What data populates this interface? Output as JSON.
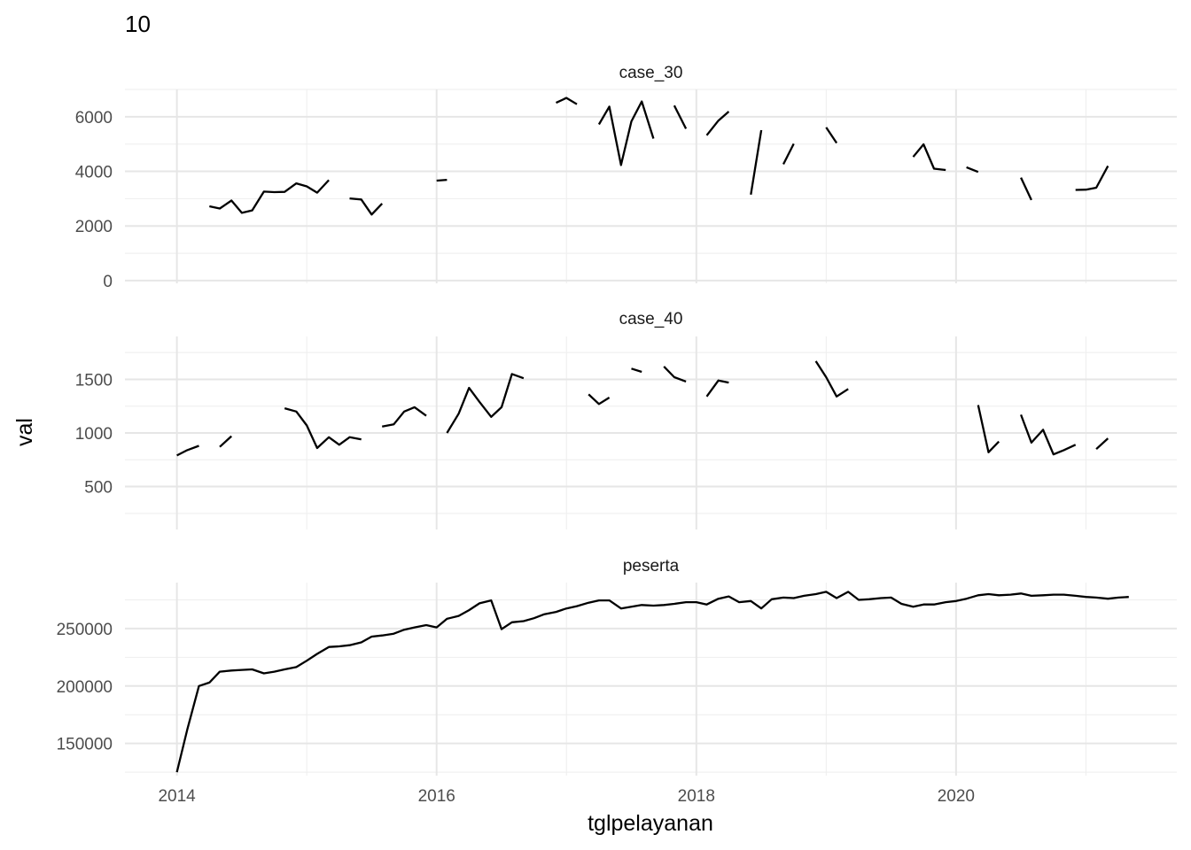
{
  "chart_data": {
    "type": "line",
    "title": "10",
    "xlabel": "tglpelayanan",
    "ylabel": "val",
    "x_unit": "year (decimal)",
    "xlim": [
      2013.6,
      2021.7
    ],
    "x_ticks": [
      2014,
      2016,
      2018,
      2020
    ],
    "x_tick_labels": [
      "2014",
      "2016",
      "2018",
      "2020"
    ],
    "grid": true,
    "line_color": "#000000",
    "panels": [
      {
        "label": "case_30",
        "ylim": [
          -100,
          7000
        ],
        "y_ticks": [
          0,
          2000,
          4000,
          6000
        ],
        "y_tick_labels": [
          "0",
          "2000",
          "4000",
          "6000"
        ],
        "y_minor_ticks": [
          1000,
          3000,
          5000,
          7000
        ],
        "segments": [
          {
            "x": [
              2014.25,
              2014.33,
              2014.42,
              2014.5,
              2014.58,
              2014.67,
              2014.75,
              2014.83,
              2014.92,
              2015.0,
              2015.08,
              2015.17
            ],
            "y": [
              2720,
              2640,
              2930,
              2480,
              2570,
              3260,
              3240,
              3250,
              3560,
              3450,
              3220,
              3680
            ]
          },
          {
            "x": [
              2015.33,
              2015.42,
              2015.5,
              2015.58
            ],
            "y": [
              3010,
              2970,
              2420,
              2820
            ]
          },
          {
            "x": [
              2016.0,
              2016.08
            ],
            "y": [
              3660,
              3690
            ]
          },
          {
            "x": [
              2016.92,
              2017.0,
              2017.08
            ],
            "y": [
              6510,
              6690,
              6460
            ]
          },
          {
            "x": [
              2017.25,
              2017.33,
              2017.42,
              2017.5,
              2017.58,
              2017.67
            ],
            "y": [
              5720,
              6370,
              4230,
              5830,
              6560,
              5200
            ]
          },
          {
            "x": [
              2017.83,
              2017.92
            ],
            "y": [
              6410,
              5560
            ]
          },
          {
            "x": [
              2018.08,
              2018.17,
              2018.25
            ],
            "y": [
              5320,
              5860,
              6190
            ]
          },
          {
            "x": [
              2018.42,
              2018.5
            ],
            "y": [
              3150,
              5510
            ]
          },
          {
            "x": [
              2018.67,
              2018.75
            ],
            "y": [
              4260,
              5010
            ]
          },
          {
            "x": [
              2019.0,
              2019.08
            ],
            "y": [
              5610,
              5040
            ]
          },
          {
            "x": [
              2019.67,
              2019.75,
              2019.83,
              2019.92
            ],
            "y": [
              4530,
              4990,
              4100,
              4050
            ]
          },
          {
            "x": [
              2020.08,
              2020.17
            ],
            "y": [
              4150,
              3980
            ]
          },
          {
            "x": [
              2020.5,
              2020.58
            ],
            "y": [
              3770,
              2950
            ]
          },
          {
            "x": [
              2020.92,
              2021.0,
              2021.08,
              2021.17
            ],
            "y": [
              3320,
              3330,
              3400,
              4200
            ]
          }
        ]
      },
      {
        "label": "case_40",
        "ylim": [
          100,
          1900
        ],
        "y_ticks": [
          500,
          1000,
          1500
        ],
        "y_tick_labels": [
          "500",
          "1000",
          "1500"
        ],
        "y_minor_ticks": [
          250,
          750,
          1250,
          1750
        ],
        "segments": [
          {
            "x": [
              2014.0,
              2014.08,
              2014.17
            ],
            "y": [
              790,
              840,
              880
            ]
          },
          {
            "x": [
              2014.33,
              2014.42
            ],
            "y": [
              870,
              970
            ]
          },
          {
            "x": [
              2014.83,
              2014.92,
              2015.0,
              2015.08,
              2015.17,
              2015.25,
              2015.33,
              2015.42
            ],
            "y": [
              1230,
              1200,
              1070,
              860,
              960,
              890,
              960,
              940
            ]
          },
          {
            "x": [
              2015.58,
              2015.67,
              2015.75,
              2015.83,
              2015.92
            ],
            "y": [
              1060,
              1080,
              1200,
              1240,
              1160
            ]
          },
          {
            "x": [
              2016.08,
              2016.17,
              2016.25,
              2016.33,
              2016.42,
              2016.5,
              2016.58,
              2016.67
            ],
            "y": [
              1000,
              1180,
              1420,
              1290,
              1150,
              1240,
              1550,
              1510
            ]
          },
          {
            "x": [
              2017.17,
              2017.25,
              2017.33
            ],
            "y": [
              1360,
              1270,
              1330
            ]
          },
          {
            "x": [
              2017.5,
              2017.58
            ],
            "y": [
              1600,
              1570
            ]
          },
          {
            "x": [
              2017.75,
              2017.83,
              2017.92
            ],
            "y": [
              1620,
              1520,
              1480
            ]
          },
          {
            "x": [
              2018.08,
              2018.17,
              2018.25
            ],
            "y": [
              1340,
              1490,
              1470
            ]
          },
          {
            "x": [
              2018.92,
              2019.0,
              2019.08,
              2019.17
            ],
            "y": [
              1670,
              1520,
              1340,
              1410
            ]
          },
          {
            "x": [
              2020.17,
              2020.25,
              2020.33
            ],
            "y": [
              1260,
              820,
              920
            ]
          },
          {
            "x": [
              2020.5,
              2020.58,
              2020.67,
              2020.75,
              2020.83,
              2020.92
            ],
            "y": [
              1170,
              910,
              1030,
              800,
              840,
              890
            ]
          },
          {
            "x": [
              2021.08,
              2021.17
            ],
            "y": [
              850,
              950
            ]
          }
        ]
      },
      {
        "label": "peserta",
        "ylim": [
          122000,
          290000
        ],
        "y_ticks": [
          150000,
          200000,
          250000
        ],
        "y_tick_labels": [
          "150000",
          "200000",
          "250000"
        ],
        "y_minor_ticks": [
          125000,
          175000,
          225000,
          275000
        ],
        "segments": [
          {
            "x": [
              2014.0,
              2014.08,
              2014.17,
              2014.25,
              2014.33,
              2014.42,
              2014.5,
              2014.58,
              2014.67,
              2014.75,
              2014.83,
              2014.92,
              2015.0,
              2015.08,
              2015.17,
              2015.25,
              2015.33,
              2015.42,
              2015.5,
              2015.58,
              2015.67,
              2015.75,
              2015.83,
              2015.92,
              2016.0,
              2016.08,
              2016.17,
              2016.25,
              2016.33,
              2016.42,
              2016.5,
              2016.58,
              2016.67,
              2016.75,
              2016.83,
              2016.92,
              2017.0,
              2017.08,
              2017.17,
              2017.25,
              2017.33,
              2017.42,
              2017.5,
              2017.58,
              2017.67,
              2017.75,
              2017.83,
              2017.92,
              2018.0,
              2018.08,
              2018.17,
              2018.25,
              2018.33,
              2018.42,
              2018.5,
              2018.58,
              2018.67,
              2018.75,
              2018.83,
              2018.92,
              2019.0,
              2019.08,
              2019.17,
              2019.25,
              2019.33,
              2019.42,
              2019.5,
              2019.58,
              2019.67,
              2019.75,
              2019.83,
              2019.92,
              2020.0,
              2020.08,
              2020.17,
              2020.25,
              2020.33,
              2020.42,
              2020.5,
              2020.58,
              2020.67,
              2020.75,
              2020.83,
              2020.92,
              2021.0,
              2021.08,
              2021.17,
              2021.25,
              2021.33
            ],
            "y": [
              125000,
              162000,
              200000,
              203000,
              212500,
              213500,
              214000,
              214500,
              211000,
              212500,
              214500,
              216500,
              222000,
              228000,
              234000,
              234500,
              235500,
              238000,
              243000,
              244000,
              245500,
              249000,
              251000,
              253000,
              251000,
              258500,
              261000,
              266000,
              272000,
              274500,
              249500,
              255500,
              256500,
              259000,
              262500,
              264500,
              267500,
              269500,
              272500,
              274500,
              274500,
              267500,
              269000,
              270500,
              270000,
              270500,
              271500,
              273000,
              273000,
              271000,
              276000,
              278000,
              273000,
              274000,
              267500,
              275500,
              277000,
              276500,
              278500,
              280000,
              282000,
              276500,
              282000,
              275000,
              275500,
              276500,
              277000,
              271500,
              269000,
              271000,
              271000,
              273000,
              274000,
              276000,
              279000,
              280000,
              279000,
              279500,
              280500,
              278500,
              279000,
              279500,
              279500,
              278500,
              277500,
              277000,
              276000,
              277000,
              277500
            ]
          }
        ]
      }
    ]
  }
}
